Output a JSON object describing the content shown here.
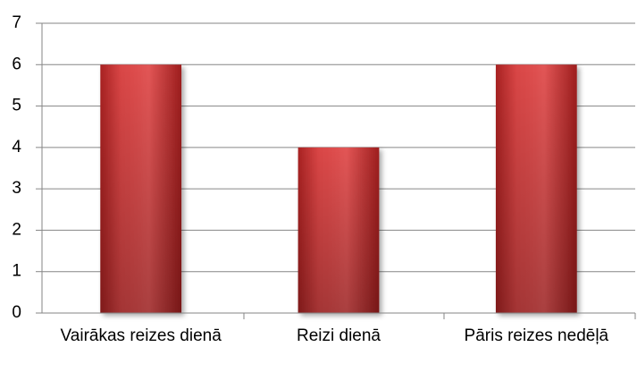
{
  "chart_data": {
    "type": "bar",
    "categories": [
      "Vairākas reizes dienā",
      "Reizi dienā",
      "Pāris reizes nedēļā"
    ],
    "values": [
      6,
      4,
      6
    ],
    "color": "#d94040",
    "ylim": [
      0,
      7
    ],
    "yticks": [
      0,
      1,
      2,
      3,
      4,
      5,
      6,
      7
    ],
    "grid": true
  }
}
